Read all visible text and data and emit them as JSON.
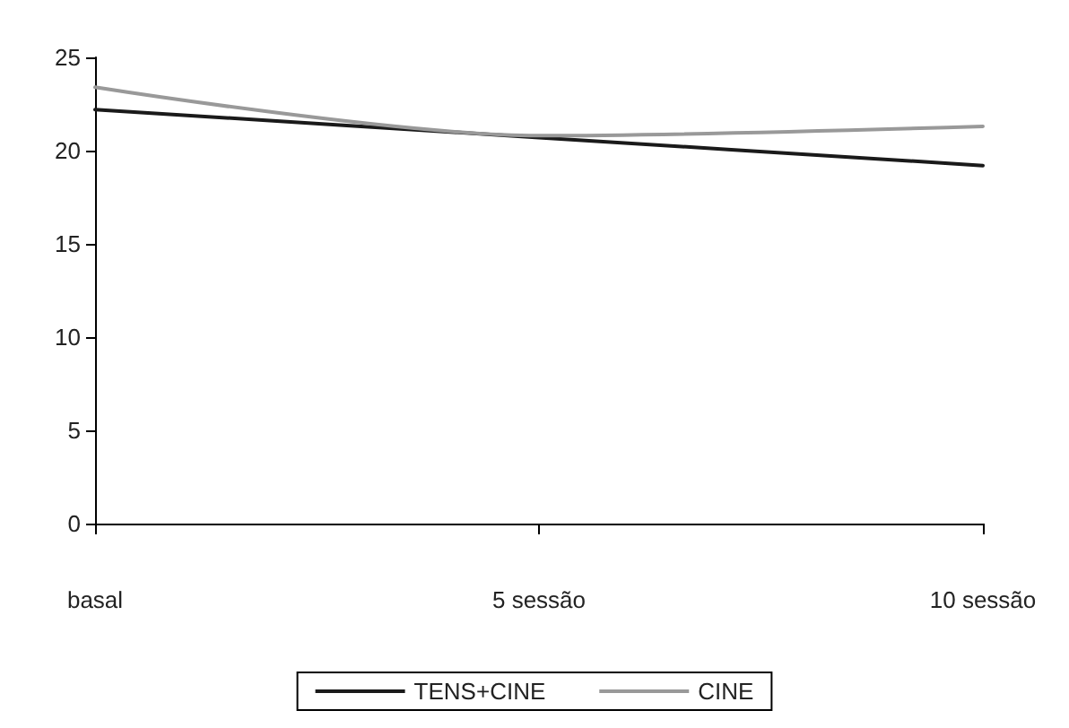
{
  "chart_data": {
    "type": "line",
    "categories": [
      "basal",
      "5 sessão",
      "10 sessão"
    ],
    "series": [
      {
        "name": "TENS+CINE",
        "color": "#1a1a1a",
        "values": [
          22.2,
          20.7,
          19.2
        ]
      },
      {
        "name": "CINE",
        "color": "#999999",
        "values": [
          23.4,
          20.8,
          21.3
        ]
      }
    ],
    "ylim": [
      0,
      25
    ],
    "yticks": [
      0,
      5,
      10,
      15,
      20,
      25
    ],
    "grid": false,
    "legend": "bottom",
    "marker": "none",
    "line_style": "solid"
  }
}
